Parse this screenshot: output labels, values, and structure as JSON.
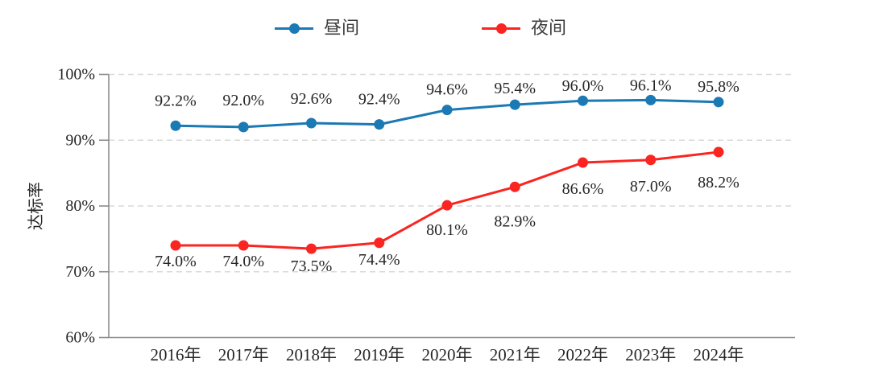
{
  "chart_data": {
    "type": "line",
    "title": "",
    "xlabel": "",
    "ylabel": "达标率",
    "categories": [
      "2016年",
      "2017年",
      "2018年",
      "2019年",
      "2020年",
      "2021年",
      "2022年",
      "2023年",
      "2024年"
    ],
    "series": [
      {
        "name": "昼间",
        "color": "#1b79b3",
        "values": [
          92.2,
          92.0,
          92.6,
          92.4,
          94.6,
          95.4,
          96.0,
          96.1,
          95.8
        ],
        "labels": [
          "92.2%",
          "92.0%",
          "92.6%",
          "92.4%",
          "94.6%",
          "95.4%",
          "96.0%",
          "96.1%",
          "95.8%"
        ],
        "label_position": "above",
        "label_dy": [
          -31,
          -33,
          -30,
          -31,
          -25,
          -20,
          -18,
          -18,
          -19
        ]
      },
      {
        "name": "夜间",
        "color": "#fa2521",
        "values": [
          74.0,
          74.0,
          73.5,
          74.4,
          80.1,
          82.9,
          86.6,
          87.0,
          88.2
        ],
        "labels": [
          "74.0%",
          "74.0%",
          "73.5%",
          "74.4%",
          "80.1%",
          "82.9%",
          "86.6%",
          "87.0%",
          "88.2%"
        ],
        "label_position": "below",
        "label_dy": [
          20,
          20,
          22,
          21,
          31,
          43,
          33,
          33,
          38
        ]
      }
    ],
    "ylim": [
      60,
      100
    ],
    "yticks": [
      {
        "value": 60,
        "label": "60%"
      },
      {
        "value": 70,
        "label": "70%"
      },
      {
        "value": 80,
        "label": "80%"
      },
      {
        "value": 90,
        "label": "90%"
      },
      {
        "value": 100,
        "label": "100%"
      }
    ],
    "grid": "horizontal-dashed",
    "legend_position": "top-center",
    "colors": {
      "axis": "#8c8c8c",
      "gridline": "#d9d9d9",
      "tick_text": "#262626",
      "data_label_text": "#262626"
    }
  }
}
